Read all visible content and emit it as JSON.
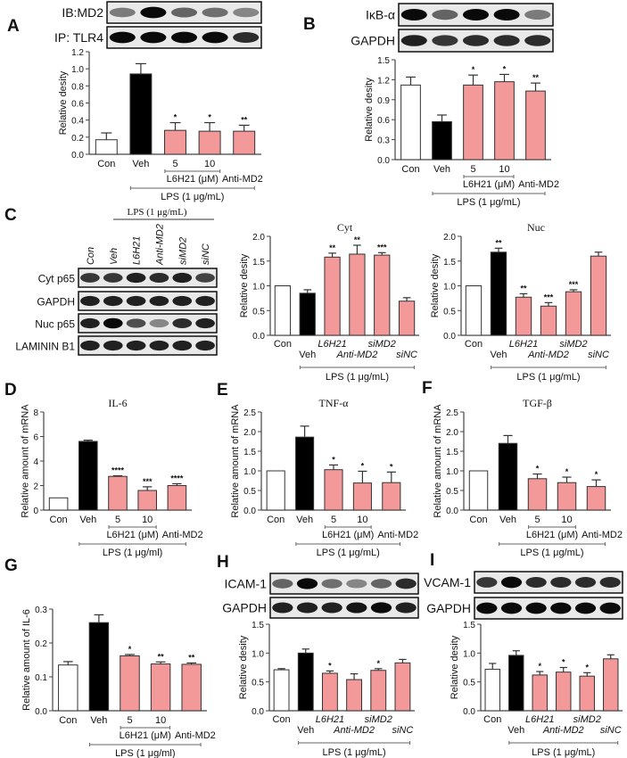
{
  "colors": {
    "control": "#ffffff",
    "vehicle": "#000000",
    "treatment": "#f4999a",
    "axis": "#444444",
    "bracket": "#666666"
  },
  "blots": {
    "A": {
      "letter": "A",
      "rows": [
        {
          "label": "IB:MD2",
          "intensity": [
            0.5,
            1.0,
            0.6,
            0.55,
            0.45
          ]
        },
        {
          "label": "IP: TLR4",
          "intensity": [
            1.0,
            1.0,
            1.0,
            1.0,
            0.85
          ]
        }
      ]
    },
    "B": {
      "letter": "B",
      "rows": [
        {
          "label": "IκB-α",
          "intensity": [
            1.0,
            0.6,
            1.0,
            1.0,
            0.5
          ]
        },
        {
          "label": "GAPDH",
          "intensity": [
            0.9,
            0.8,
            0.85,
            0.85,
            0.85
          ]
        }
      ]
    },
    "C": {
      "letter": "C",
      "header": "LPS (1 μg/mL)",
      "lanes": [
        "Con",
        "Veh",
        "L6H21",
        "Anti-MD2",
        "siMD2",
        "siNC"
      ],
      "rows": [
        {
          "label": "Cyt p65",
          "intensity": [
            0.8,
            0.8,
            0.9,
            0.85,
            0.9,
            0.75
          ]
        },
        {
          "label": "GAPDH",
          "intensity": [
            0.9,
            0.9,
            0.9,
            0.9,
            0.9,
            0.9
          ]
        },
        {
          "label": "Nuc p65",
          "intensity": [
            0.9,
            1.0,
            0.7,
            0.45,
            0.85,
            0.9
          ]
        },
        {
          "label": "LAMININ B1",
          "intensity": [
            0.9,
            0.9,
            0.9,
            0.9,
            0.9,
            0.9
          ]
        }
      ]
    },
    "H": {
      "letter": "H",
      "rows": [
        {
          "label": "ICAM-1",
          "intensity": [
            0.6,
            1.0,
            0.55,
            0.45,
            0.6,
            0.85
          ]
        },
        {
          "label": "GAPDH",
          "intensity": [
            0.9,
            0.9,
            0.9,
            0.95,
            1.0,
            0.9
          ]
        }
      ]
    },
    "I": {
      "letter": "I",
      "rows": [
        {
          "label": "VCAM-1",
          "intensity": [
            0.8,
            1.0,
            0.85,
            0.85,
            0.85,
            0.85
          ]
        },
        {
          "label": "GAPDH",
          "intensity": [
            1.0,
            1.0,
            1.0,
            1.0,
            1.0,
            1.0
          ]
        }
      ]
    }
  },
  "chart_data": [
    {
      "id": "A",
      "type": "bar",
      "title": "",
      "ylabel": "Relative desity",
      "xlabel": "",
      "categories": [
        "Con",
        "Veh",
        "5",
        "10",
        "Anti-MD2"
      ],
      "values": [
        0.17,
        0.94,
        0.28,
        0.27,
        0.27
      ],
      "errors": [
        0.08,
        0.12,
        0.09,
        0.1,
        0.07
      ],
      "significance": [
        "",
        "",
        "*",
        "*",
        "**"
      ],
      "fill": [
        "control",
        "vehicle",
        "treatment",
        "treatment",
        "treatment"
      ],
      "ylim": [
        0,
        1.2
      ],
      "yticks": [
        "0.0",
        "0.2",
        "0.4",
        "0.6",
        "0.8",
        "1.0",
        "1.2"
      ],
      "brackets": [
        {
          "label": "L6H21 (μM)",
          "from": 2,
          "to": 3
        },
        {
          "label": "LPS (1 μg/mL)",
          "from": 1,
          "to": 4
        }
      ]
    },
    {
      "id": "B",
      "type": "bar",
      "title": "",
      "ylabel": "Relative desity",
      "xlabel": "",
      "categories": [
        "Con",
        "Veh",
        "5",
        "10",
        "Anti-MD2"
      ],
      "values": [
        1.12,
        0.57,
        1.12,
        1.17,
        1.03
      ],
      "errors": [
        0.12,
        0.1,
        0.15,
        0.11,
        0.12
      ],
      "significance": [
        "",
        "",
        "*",
        "*",
        "**"
      ],
      "fill": [
        "control",
        "vehicle",
        "treatment",
        "treatment",
        "treatment"
      ],
      "ylim": [
        0,
        1.5
      ],
      "yticks": [
        "0.0",
        "0.3",
        "0.6",
        "0.9",
        "1.2",
        "1.5"
      ],
      "brackets": [
        {
          "label": "L6H21 (μM)",
          "from": 2,
          "to": 3
        },
        {
          "label": "LPS (1 μg/mL)",
          "from": 1,
          "to": 4
        }
      ]
    },
    {
      "id": "C-Cyt",
      "type": "bar",
      "title": "Cyt",
      "ylabel": "Relative desity",
      "xlabel": "",
      "categories": [
        "Con",
        "Veh",
        "L6H21",
        "Anti-MD2",
        "siMD2",
        "siNC"
      ],
      "values": [
        1.0,
        0.85,
        1.58,
        1.64,
        1.62,
        0.69
      ],
      "errors": [
        0,
        0.07,
        0.08,
        0.18,
        0.05,
        0.07
      ],
      "significance": [
        "",
        "",
        "**",
        "**",
        "***",
        ""
      ],
      "fill": [
        "control",
        "vehicle",
        "treatment",
        "treatment",
        "treatment",
        "treatment"
      ],
      "ylim": [
        0,
        2.0
      ],
      "yticks": [
        "0.0",
        "0.5",
        "1.0",
        "1.5",
        "2.0"
      ],
      "brackets": [
        {
          "label": "LPS (1 μg/mL)",
          "from": 1,
          "to": 5
        }
      ]
    },
    {
      "id": "C-Nuc",
      "type": "bar",
      "title": "Nuc",
      "ylabel": "Relative desity",
      "xlabel": "",
      "categories": [
        "Con",
        "Veh",
        "L6H21",
        "Anti-MD2",
        "siMD2",
        "siNC"
      ],
      "values": [
        1.0,
        1.68,
        0.77,
        0.59,
        0.88,
        1.6
      ],
      "errors": [
        0,
        0.08,
        0.07,
        0.07,
        0.04,
        0.08
      ],
      "significance": [
        "",
        "**",
        "**",
        "***",
        "***",
        ""
      ],
      "fill": [
        "control",
        "vehicle",
        "treatment",
        "treatment",
        "treatment",
        "treatment"
      ],
      "ylim": [
        0,
        2.0
      ],
      "yticks": [
        "0.0",
        "0.5",
        "1.0",
        "1.5",
        "2.0"
      ],
      "brackets": [
        {
          "label": "LPS (1 μg/mL)",
          "from": 1,
          "to": 5
        }
      ]
    },
    {
      "id": "D",
      "letter": "D",
      "type": "bar",
      "title": "IL-6",
      "ylabel": "Relative amount of mRNA",
      "xlabel": "",
      "categories": [
        "Con",
        "Veh",
        "5",
        "10",
        "Anti-MD2"
      ],
      "values": [
        1.0,
        5.6,
        2.75,
        1.6,
        2.0
      ],
      "errors": [
        0,
        0.1,
        0.05,
        0.3,
        0.15
      ],
      "significance": [
        "",
        "",
        "****",
        "***",
        "****"
      ],
      "fill": [
        "control",
        "vehicle",
        "treatment",
        "treatment",
        "treatment"
      ],
      "ylim": [
        0,
        8
      ],
      "yticks": [
        "0",
        "2",
        "4",
        "6",
        "8"
      ],
      "brackets": [
        {
          "label": "L6H21 (μM)",
          "from": 2,
          "to": 3
        },
        {
          "label": "LPS (1 μg/ml)",
          "from": 1,
          "to": 4
        }
      ]
    },
    {
      "id": "E",
      "letter": "E",
      "type": "bar",
      "title": "TNF-α",
      "ylabel": "Relative amount of mRNA",
      "xlabel": "",
      "categories": [
        "Con",
        "Veh",
        "5",
        "10",
        "Anti-MD2"
      ],
      "values": [
        1.0,
        1.86,
        1.03,
        0.69,
        0.7
      ],
      "errors": [
        0,
        0.28,
        0.12,
        0.3,
        0.27
      ],
      "significance": [
        "",
        "",
        "*",
        "*",
        "*"
      ],
      "fill": [
        "control",
        "vehicle",
        "treatment",
        "treatment",
        "treatment"
      ],
      "ylim": [
        0,
        2.5
      ],
      "yticks": [
        "0.0",
        "0.5",
        "1.0",
        "1.5",
        "2.0",
        "2.5"
      ],
      "brackets": [
        {
          "label": "L6H21 (μM)",
          "from": 2,
          "to": 3
        },
        {
          "label": "LPS (1 μg/mL)",
          "from": 1,
          "to": 4
        }
      ]
    },
    {
      "id": "F",
      "letter": "F",
      "type": "bar",
      "title": "TGF-β",
      "ylabel": "Relative amount of mRNA",
      "xlabel": "",
      "categories": [
        "Con",
        "Veh",
        "5",
        "10",
        "Anti-MD2"
      ],
      "values": [
        1.0,
        1.7,
        0.8,
        0.7,
        0.6
      ],
      "errors": [
        0,
        0.2,
        0.12,
        0.14,
        0.17
      ],
      "significance": [
        "",
        "",
        "*",
        "*",
        "*"
      ],
      "fill": [
        "control",
        "vehicle",
        "treatment",
        "treatment",
        "treatment"
      ],
      "ylim": [
        0,
        2.5
      ],
      "yticks": [
        "0.0",
        "0.5",
        "1.0",
        "1.5",
        "2.0",
        "2.5"
      ],
      "brackets": [
        {
          "label": "L6H21 (μM)",
          "from": 2,
          "to": 3
        },
        {
          "label": "LPS (1 μg/mL)",
          "from": 1,
          "to": 4
        }
      ]
    },
    {
      "id": "G",
      "letter": "G",
      "type": "bar",
      "title": "",
      "ylabel": "Relative amount of IL-6",
      "xlabel": "",
      "categories": [
        "Con",
        "Veh",
        "5",
        "10",
        "Anti-MD2"
      ],
      "values": [
        0.135,
        0.26,
        0.162,
        0.138,
        0.137
      ],
      "errors": [
        0.01,
        0.023,
        0.004,
        0.006,
        0.004
      ],
      "significance": [
        "",
        "",
        "*",
        "**",
        "**"
      ],
      "fill": [
        "control",
        "vehicle",
        "treatment",
        "treatment",
        "treatment"
      ],
      "ylim": [
        0,
        0.3
      ],
      "yticks": [
        "0.0",
        "0.1",
        "0.2",
        "0.3"
      ],
      "brackets": [
        {
          "label": "L6H21 (μM)",
          "from": 2,
          "to": 3
        },
        {
          "label": "LPS (1 μg/ml)",
          "from": 1,
          "to": 4
        }
      ]
    },
    {
      "id": "H",
      "type": "bar",
      "title": "",
      "ylabel": "Relative desity",
      "xlabel": "",
      "categories": [
        "Con",
        "Veh",
        "L6H21",
        "Anti-MD2",
        "siMD2",
        "siNC"
      ],
      "values": [
        0.71,
        1.0,
        0.65,
        0.54,
        0.7,
        0.83
      ],
      "errors": [
        0.02,
        0.07,
        0.04,
        0.1,
        0.03,
        0.06
      ],
      "significance": [
        "",
        "",
        "*",
        "",
        "*",
        ""
      ],
      "fill": [
        "control",
        "vehicle",
        "treatment",
        "treatment",
        "treatment",
        "treatment"
      ],
      "ylim": [
        0,
        1.5
      ],
      "yticks": [
        "0.0",
        "0.5",
        "1.0",
        "1.5"
      ],
      "brackets": [
        {
          "label": "LPS (1 μg/mL)",
          "from": 1,
          "to": 5
        }
      ]
    },
    {
      "id": "I",
      "type": "bar",
      "title": "",
      "ylabel": "Relative desity",
      "xlabel": "",
      "categories": [
        "Con",
        "Veh",
        "L6H21",
        "Anti-MD2",
        "siMD2",
        "siNC"
      ],
      "values": [
        0.72,
        0.96,
        0.62,
        0.67,
        0.6,
        0.9
      ],
      "errors": [
        0.1,
        0.08,
        0.06,
        0.08,
        0.06,
        0.07
      ],
      "significance": [
        "",
        "",
        "*",
        "*",
        "*",
        ""
      ],
      "fill": [
        "control",
        "vehicle",
        "treatment",
        "treatment",
        "treatment",
        "treatment"
      ],
      "ylim": [
        0,
        1.5
      ],
      "yticks": [
        "0.0",
        "0.5",
        "1.0",
        "1.5"
      ],
      "brackets": [
        {
          "label": "LPS (1 μg/mL)",
          "from": 1,
          "to": 5
        }
      ]
    }
  ]
}
